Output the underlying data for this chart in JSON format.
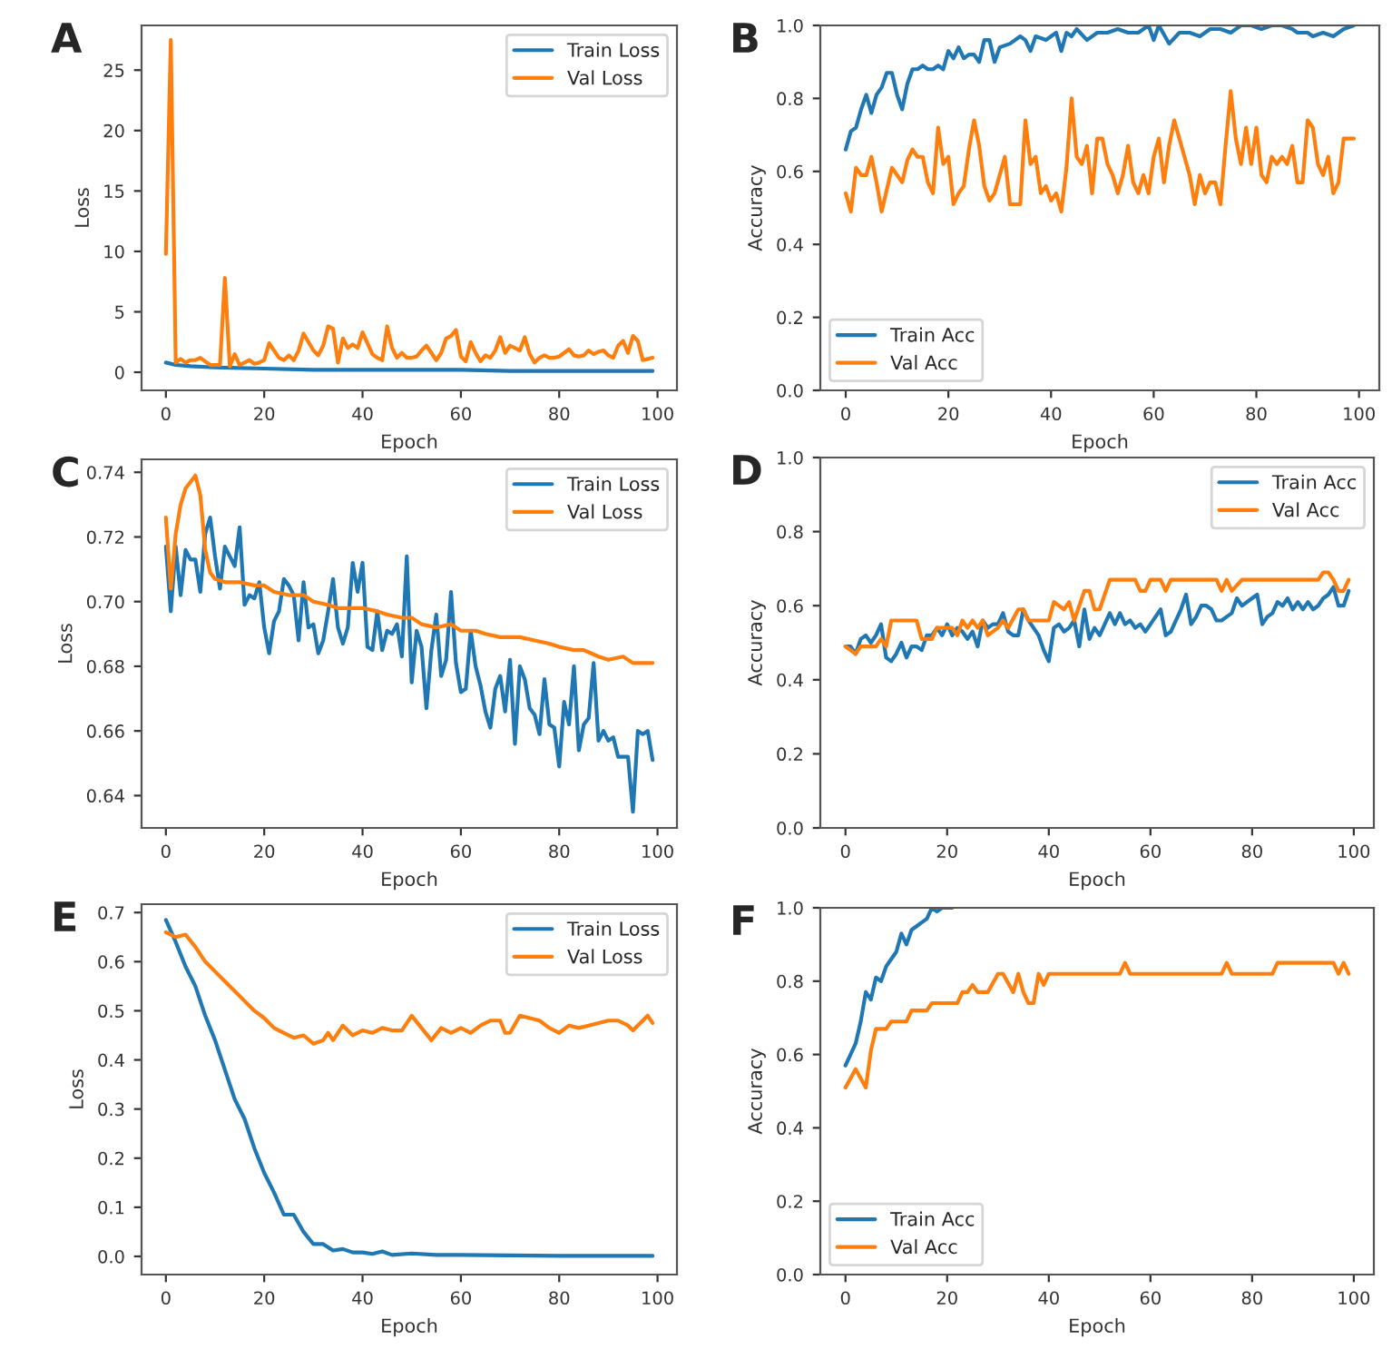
{
  "chart_data": [
    {
      "type": "line",
      "title": "A",
      "xlabel": "Epoch",
      "ylabel": "Loss",
      "xlim": [
        -4.95,
        103.95
      ],
      "xticks": [
        0,
        20,
        40,
        60,
        80,
        100
      ],
      "ylim": [
        -1.5,
        28.7
      ],
      "yticks": [
        0,
        5,
        10,
        15,
        20,
        25
      ],
      "legend": "top right",
      "grid": false,
      "series": [
        {
          "name": "Train Loss",
          "color": "#1f77b4",
          "x": [
            0,
            2,
            5,
            10,
            20,
            30,
            40,
            50,
            60,
            70,
            80,
            90,
            99
          ],
          "values": [
            0.8,
            0.6,
            0.5,
            0.4,
            0.3,
            0.2,
            0.2,
            0.2,
            0.2,
            0.1,
            0.1,
            0.1,
            0.1
          ]
        },
        {
          "name": "Val Loss",
          "color": "#ff7f0e",
          "x": [
            0,
            1,
            2,
            3,
            4,
            5,
            6,
            7,
            8,
            9,
            10,
            11,
            12,
            13,
            14,
            15,
            16,
            17,
            18,
            19,
            20,
            21,
            22,
            23,
            24,
            25,
            26,
            27,
            28,
            29,
            30,
            31,
            32,
            33,
            34,
            35,
            36,
            37,
            38,
            39,
            40,
            41,
            42,
            43,
            44,
            45,
            46,
            47,
            48,
            49,
            50,
            51,
            52,
            53,
            54,
            55,
            56,
            57,
            58,
            59,
            60,
            61,
            62,
            63,
            64,
            65,
            66,
            67,
            68,
            69,
            70,
            71,
            72,
            73,
            74,
            75,
            76,
            77,
            78,
            79,
            80,
            81,
            82,
            83,
            84,
            85,
            86,
            87,
            88,
            89,
            90,
            91,
            92,
            93,
            94,
            95,
            96,
            97,
            98,
            99
          ],
          "values": [
            9.8,
            27.5,
            0.8,
            1.1,
            0.8,
            1.0,
            1.0,
            1.2,
            0.9,
            0.6,
            0.6,
            0.6,
            7.8,
            0.5,
            1.5,
            0.6,
            0.8,
            1.0,
            0.7,
            0.8,
            1.0,
            2.4,
            1.8,
            1.2,
            1.0,
            1.4,
            1.0,
            1.8,
            3.2,
            2.5,
            1.8,
            1.4,
            2.2,
            3.8,
            3.6,
            0.8,
            2.8,
            2.0,
            2.3,
            2.0,
            3.3,
            2.4,
            1.5,
            1.2,
            1.0,
            3.8,
            2.0,
            1.2,
            1.6,
            1.2,
            1.2,
            1.3,
            1.8,
            2.2,
            1.6,
            1.0,
            1.6,
            2.8,
            3.0,
            3.5,
            1.3,
            0.9,
            2.5,
            1.6,
            0.9,
            1.4,
            1.2,
            1.8,
            2.9,
            1.6,
            2.2,
            2.0,
            1.8,
            2.9,
            1.5,
            0.8,
            1.2,
            1.4,
            1.2,
            1.2,
            1.3,
            1.6,
            1.9,
            1.4,
            1.3,
            1.4,
            1.8,
            1.5,
            1.7,
            1.8,
            1.4,
            1.2,
            2.2,
            2.6,
            1.6,
            3.0,
            2.6,
            1.0,
            1.1,
            1.2
          ]
        }
      ]
    },
    {
      "type": "line",
      "title": "B",
      "xlabel": "Epoch",
      "ylabel": "Accuracy",
      "xlim": [
        -4.95,
        103.95
      ],
      "xticks": [
        0,
        20,
        40,
        60,
        80,
        100
      ],
      "ylim": [
        0,
        1
      ],
      "yticks": [
        {
          "value": 0,
          "label": "0.0"
        },
        0.2,
        0.4,
        0.6,
        0.8,
        {
          "value": 1,
          "label": "1.0"
        }
      ],
      "legend": "bottom left",
      "grid": false,
      "series": [
        {
          "name": "Train Acc",
          "color": "#1f77b4",
          "x": [
            0,
            1,
            2,
            3,
            4,
            5,
            6,
            7,
            8,
            9,
            10,
            11,
            12,
            13,
            14,
            15,
            16,
            17,
            18,
            19,
            20,
            21,
            22,
            23,
            24,
            25,
            26,
            27,
            28,
            29,
            30,
            32,
            34,
            35,
            36,
            37,
            39,
            40,
            41,
            42,
            43,
            44,
            45,
            47,
            49,
            51,
            53,
            55,
            57,
            59,
            60,
            61,
            63,
            65,
            67,
            69,
            71,
            73,
            75,
            77,
            79,
            81,
            83,
            85,
            87,
            88,
            90,
            91,
            93,
            95,
            97,
            99
          ],
          "values": [
            0.66,
            0.71,
            0.72,
            0.77,
            0.81,
            0.76,
            0.81,
            0.83,
            0.87,
            0.87,
            0.81,
            0.77,
            0.84,
            0.88,
            0.88,
            0.89,
            0.88,
            0.88,
            0.89,
            0.88,
            0.93,
            0.91,
            0.94,
            0.91,
            0.92,
            0.92,
            0.9,
            0.96,
            0.96,
            0.9,
            0.94,
            0.95,
            0.97,
            0.96,
            0.93,
            0.97,
            0.96,
            0.97,
            0.98,
            0.93,
            0.98,
            0.97,
            0.99,
            0.96,
            0.98,
            0.98,
            0.99,
            0.98,
            0.98,
            1.0,
            0.96,
            1.0,
            0.95,
            0.98,
            0.98,
            0.97,
            0.99,
            0.99,
            0.98,
            1.0,
            1.0,
            0.99,
            1.0,
            1.0,
            0.99,
            0.98,
            0.98,
            0.97,
            0.98,
            0.97,
            0.99,
            1.0
          ]
        },
        {
          "name": "Val Acc",
          "color": "#ff7f0e",
          "x": [
            0,
            1,
            2,
            3,
            4,
            5,
            6,
            7,
            8,
            9,
            10,
            11,
            12,
            13,
            14,
            15,
            16,
            17,
            18,
            19,
            20,
            21,
            22,
            23,
            24,
            25,
            26,
            27,
            28,
            29,
            30,
            31,
            32,
            33,
            34,
            35,
            36,
            37,
            38,
            39,
            40,
            41,
            42,
            43,
            44,
            45,
            46,
            47,
            48,
            49,
            50,
            51,
            52,
            53,
            54,
            55,
            56,
            57,
            58,
            59,
            60,
            61,
            62,
            63,
            64,
            65,
            66,
            67,
            68,
            69,
            70,
            71,
            72,
            73,
            74,
            75,
            76,
            77,
            78,
            79,
            80,
            81,
            82,
            83,
            84,
            85,
            86,
            87,
            88,
            89,
            90,
            91,
            92,
            93,
            94,
            95,
            96,
            97,
            98,
            99
          ],
          "values": [
            0.54,
            0.49,
            0.61,
            0.59,
            0.59,
            0.64,
            0.57,
            0.49,
            0.55,
            0.61,
            0.59,
            0.57,
            0.63,
            0.66,
            0.64,
            0.64,
            0.57,
            0.54,
            0.72,
            0.62,
            0.64,
            0.51,
            0.54,
            0.56,
            0.66,
            0.74,
            0.67,
            0.56,
            0.52,
            0.54,
            0.59,
            0.64,
            0.51,
            0.51,
            0.51,
            0.74,
            0.62,
            0.64,
            0.54,
            0.56,
            0.52,
            0.54,
            0.49,
            0.61,
            0.8,
            0.64,
            0.62,
            0.67,
            0.54,
            0.69,
            0.69,
            0.62,
            0.59,
            0.54,
            0.59,
            0.67,
            0.57,
            0.54,
            0.59,
            0.54,
            0.64,
            0.69,
            0.57,
            0.67,
            0.74,
            0.69,
            0.64,
            0.59,
            0.51,
            0.59,
            0.54,
            0.57,
            0.57,
            0.51,
            0.67,
            0.82,
            0.69,
            0.62,
            0.72,
            0.62,
            0.72,
            0.59,
            0.57,
            0.64,
            0.62,
            0.64,
            0.62,
            0.67,
            0.57,
            0.57,
            0.74,
            0.72,
            0.62,
            0.59,
            0.64,
            0.54,
            0.57,
            0.69,
            0.69,
            0.69
          ]
        }
      ]
    },
    {
      "type": "line",
      "title": "C",
      "xlabel": "Epoch",
      "ylabel": "Loss",
      "xlim": [
        -4.95,
        103.95
      ],
      "xticks": [
        0,
        20,
        40,
        60,
        80,
        100
      ],
      "ylim": [
        0.63,
        0.744
      ],
      "yticks": [
        0.64,
        0.66,
        0.68,
        {
          "value": 0.7,
          "label": "0.70"
        },
        0.72,
        0.74
      ],
      "legend": "top right",
      "grid": false,
      "series": [
        {
          "name": "Train Loss",
          "color": "#1f77b4",
          "x": [
            0,
            1,
            2,
            3,
            4,
            5,
            6,
            7,
            8,
            9,
            10,
            11,
            12,
            13,
            14,
            15,
            16,
            17,
            18,
            19,
            20,
            21,
            22,
            23,
            24,
            25,
            26,
            27,
            28,
            29,
            30,
            31,
            32,
            33,
            34,
            35,
            36,
            37,
            38,
            39,
            40,
            41,
            42,
            43,
            44,
            45,
            46,
            47,
            48,
            49,
            50,
            51,
            52,
            53,
            54,
            55,
            56,
            57,
            58,
            59,
            60,
            61,
            62,
            63,
            64,
            65,
            66,
            67,
            68,
            69,
            70,
            71,
            72,
            73,
            74,
            75,
            76,
            77,
            78,
            79,
            80,
            81,
            82,
            83,
            84,
            85,
            86,
            87,
            88,
            89,
            90,
            91,
            92,
            93,
            94,
            95,
            96,
            97,
            98,
            99
          ],
          "values": [
            0.717,
            0.697,
            0.717,
            0.702,
            0.716,
            0.713,
            0.713,
            0.703,
            0.721,
            0.726,
            0.714,
            0.704,
            0.717,
            0.714,
            0.711,
            0.723,
            0.699,
            0.702,
            0.701,
            0.706,
            0.692,
            0.684,
            0.694,
            0.697,
            0.707,
            0.705,
            0.702,
            0.688,
            0.706,
            0.692,
            0.693,
            0.684,
            0.688,
            0.697,
            0.707,
            0.692,
            0.687,
            0.692,
            0.712,
            0.703,
            0.712,
            0.686,
            0.685,
            0.697,
            0.685,
            0.691,
            0.69,
            0.693,
            0.683,
            0.714,
            0.675,
            0.691,
            0.686,
            0.667,
            0.685,
            0.696,
            0.677,
            0.682,
            0.703,
            0.681,
            0.672,
            0.673,
            0.691,
            0.68,
            0.674,
            0.666,
            0.661,
            0.673,
            0.677,
            0.666,
            0.682,
            0.656,
            0.68,
            0.676,
            0.667,
            0.665,
            0.659,
            0.676,
            0.662,
            0.661,
            0.649,
            0.669,
            0.662,
            0.68,
            0.654,
            0.662,
            0.664,
            0.681,
            0.657,
            0.66,
            0.657,
            0.658,
            0.652,
            0.652,
            0.652,
            0.635,
            0.66,
            0.659,
            0.66,
            0.651
          ]
        },
        {
          "name": "Val Loss",
          "color": "#ff7f0e",
          "x": [
            0,
            1,
            2,
            3,
            4,
            5,
            6,
            7,
            8,
            9,
            10,
            12,
            15,
            18,
            20,
            22,
            25,
            28,
            30,
            33,
            35,
            38,
            40,
            43,
            45,
            48,
            50,
            52,
            55,
            58,
            60,
            63,
            65,
            68,
            70,
            72,
            75,
            78,
            80,
            83,
            85,
            88,
            90,
            93,
            95,
            97,
            99
          ],
          "values": [
            0.726,
            0.704,
            0.721,
            0.73,
            0.735,
            0.737,
            0.739,
            0.733,
            0.716,
            0.709,
            0.707,
            0.706,
            0.706,
            0.705,
            0.705,
            0.703,
            0.702,
            0.702,
            0.7,
            0.699,
            0.698,
            0.698,
            0.698,
            0.697,
            0.696,
            0.695,
            0.695,
            0.693,
            0.692,
            0.693,
            0.691,
            0.691,
            0.69,
            0.689,
            0.689,
            0.689,
            0.688,
            0.687,
            0.686,
            0.685,
            0.685,
            0.683,
            0.682,
            0.683,
            0.681,
            0.681,
            0.681
          ]
        }
      ]
    },
    {
      "type": "line",
      "title": "D",
      "xlabel": "Epoch",
      "ylabel": "Accuracy",
      "xlim": [
        -4.95,
        103.95
      ],
      "xticks": [
        0,
        20,
        40,
        60,
        80,
        100
      ],
      "ylim": [
        0,
        1
      ],
      "yticks": [
        {
          "value": 0,
          "label": "0.0"
        },
        0.2,
        0.4,
        0.6,
        0.8,
        {
          "value": 1,
          "label": "1.0"
        }
      ],
      "legend": "top right",
      "grid": false,
      "series": [
        {
          "name": "Train Acc",
          "color": "#1f77b4",
          "x": [
            0,
            1,
            2,
            3,
            4,
            5,
            6,
            7,
            8,
            9,
            10,
            11,
            12,
            13,
            14,
            15,
            16,
            17,
            18,
            19,
            20,
            21,
            22,
            23,
            24,
            25,
            26,
            27,
            28,
            29,
            30,
            31,
            32,
            33,
            34,
            35,
            36,
            37,
            38,
            39,
            40,
            41,
            42,
            43,
            44,
            45,
            46,
            47,
            48,
            49,
            50,
            51,
            52,
            53,
            54,
            55,
            56,
            57,
            58,
            59,
            60,
            61,
            62,
            63,
            64,
            65,
            66,
            67,
            68,
            69,
            70,
            71,
            72,
            73,
            74,
            75,
            76,
            77,
            78,
            79,
            80,
            81,
            82,
            83,
            84,
            85,
            86,
            87,
            88,
            89,
            90,
            91,
            92,
            93,
            94,
            95,
            96,
            97,
            98,
            99
          ],
          "values": [
            0.49,
            0.49,
            0.47,
            0.51,
            0.52,
            0.5,
            0.52,
            0.55,
            0.46,
            0.45,
            0.47,
            0.5,
            0.46,
            0.49,
            0.49,
            0.48,
            0.52,
            0.52,
            0.54,
            0.52,
            0.55,
            0.52,
            0.54,
            0.53,
            0.51,
            0.53,
            0.49,
            0.56,
            0.54,
            0.55,
            0.55,
            0.58,
            0.53,
            0.52,
            0.52,
            0.59,
            0.56,
            0.54,
            0.52,
            0.48,
            0.45,
            0.54,
            0.55,
            0.53,
            0.54,
            0.56,
            0.49,
            0.59,
            0.51,
            0.54,
            0.52,
            0.55,
            0.58,
            0.55,
            0.58,
            0.55,
            0.56,
            0.54,
            0.55,
            0.53,
            0.55,
            0.57,
            0.59,
            0.52,
            0.53,
            0.56,
            0.59,
            0.63,
            0.55,
            0.57,
            0.6,
            0.6,
            0.59,
            0.56,
            0.56,
            0.57,
            0.58,
            0.62,
            0.6,
            0.61,
            0.62,
            0.63,
            0.55,
            0.57,
            0.58,
            0.61,
            0.6,
            0.62,
            0.59,
            0.61,
            0.59,
            0.61,
            0.59,
            0.6,
            0.62,
            0.63,
            0.65,
            0.6,
            0.6,
            0.64
          ]
        },
        {
          "name": "Val Acc",
          "color": "#ff7f0e",
          "x": [
            0,
            2,
            3,
            6,
            7,
            8,
            9,
            14,
            15,
            17,
            18,
            21,
            22,
            23,
            24,
            25,
            26,
            27,
            28,
            30,
            31,
            32,
            34,
            35,
            36,
            40,
            41,
            43,
            44,
            45,
            47,
            48,
            49,
            50,
            52,
            57,
            58,
            59,
            60,
            62,
            63,
            64,
            73,
            74,
            75,
            76,
            78,
            93,
            94,
            95,
            96,
            97,
            98,
            99
          ],
          "values": [
            0.49,
            0.47,
            0.49,
            0.49,
            0.51,
            0.49,
            0.56,
            0.56,
            0.51,
            0.51,
            0.54,
            0.54,
            0.52,
            0.56,
            0.54,
            0.56,
            0.54,
            0.56,
            0.52,
            0.54,
            0.56,
            0.54,
            0.59,
            0.59,
            0.56,
            0.56,
            0.61,
            0.59,
            0.61,
            0.56,
            0.64,
            0.64,
            0.59,
            0.59,
            0.67,
            0.67,
            0.64,
            0.64,
            0.67,
            0.67,
            0.64,
            0.67,
            0.67,
            0.64,
            0.67,
            0.64,
            0.67,
            0.67,
            0.69,
            0.69,
            0.67,
            0.64,
            0.64,
            0.67
          ]
        }
      ]
    },
    {
      "type": "line",
      "title": "E",
      "xlabel": "Epoch",
      "ylabel": "Loss",
      "xlim": [
        -4.95,
        103.95
      ],
      "xticks": [
        0,
        20,
        40,
        60,
        80,
        100
      ],
      "ylim": [
        -0.037,
        0.717
      ],
      "yticks": [
        {
          "value": 0,
          "label": "0.0"
        },
        0.1,
        0.2,
        0.3,
        0.4,
        0.5,
        0.6,
        0.7
      ],
      "legend": "top right",
      "grid": false,
      "series": [
        {
          "name": "Train Loss",
          "color": "#1f77b4",
          "x": [
            0,
            2,
            4,
            6,
            8,
            10,
            12,
            14,
            16,
            18,
            20,
            22,
            24,
            26,
            28,
            30,
            32,
            34,
            36,
            38,
            40,
            42,
            44,
            46,
            50,
            55,
            60,
            70,
            80,
            90,
            99
          ],
          "values": [
            0.685,
            0.64,
            0.59,
            0.55,
            0.49,
            0.44,
            0.38,
            0.32,
            0.28,
            0.22,
            0.17,
            0.13,
            0.085,
            0.085,
            0.05,
            0.025,
            0.025,
            0.012,
            0.015,
            0.008,
            0.008,
            0.005,
            0.01,
            0.003,
            0.006,
            0.003,
            0.003,
            0.002,
            0.001,
            0.001,
            0.001
          ]
        },
        {
          "name": "Val Loss",
          "color": "#ff7f0e",
          "x": [
            0,
            2,
            4,
            6,
            8,
            10,
            12,
            14,
            16,
            18,
            20,
            22,
            24,
            26,
            28,
            30,
            32,
            33,
            34,
            36,
            38,
            40,
            42,
            44,
            46,
            48,
            50,
            52,
            54,
            56,
            58,
            60,
            62,
            64,
            66,
            68,
            69,
            70,
            72,
            74,
            76,
            78,
            80,
            82,
            84,
            86,
            88,
            90,
            92,
            94,
            95,
            97,
            98,
            99
          ],
          "values": [
            0.66,
            0.65,
            0.655,
            0.63,
            0.6,
            0.58,
            0.56,
            0.54,
            0.52,
            0.5,
            0.485,
            0.465,
            0.455,
            0.445,
            0.45,
            0.433,
            0.44,
            0.455,
            0.44,
            0.47,
            0.45,
            0.46,
            0.455,
            0.465,
            0.46,
            0.46,
            0.49,
            0.465,
            0.44,
            0.465,
            0.455,
            0.465,
            0.455,
            0.47,
            0.48,
            0.48,
            0.455,
            0.455,
            0.49,
            0.485,
            0.48,
            0.465,
            0.455,
            0.47,
            0.465,
            0.47,
            0.475,
            0.48,
            0.48,
            0.47,
            0.46,
            0.48,
            0.49,
            0.475
          ]
        }
      ]
    },
    {
      "type": "line",
      "title": "F",
      "xlabel": "Epoch",
      "ylabel": "Accuracy",
      "xlim": [
        -4.95,
        103.95
      ],
      "xticks": [
        0,
        20,
        40,
        60,
        80,
        100
      ],
      "ylim": [
        0,
        1
      ],
      "yticks": [
        {
          "value": 0,
          "label": "0.0"
        },
        0.2,
        0.4,
        0.6,
        0.8,
        {
          "value": 1,
          "label": "1.0"
        }
      ],
      "legend": "bottom left",
      "grid": false,
      "series": [
        {
          "name": "Train Acc",
          "color": "#1f77b4",
          "x": [
            0,
            1,
            2,
            3,
            4,
            5,
            6,
            7,
            8,
            9,
            10,
            11,
            12,
            13,
            14,
            15,
            16,
            17,
            18,
            19,
            20,
            21
          ],
          "values": [
            0.57,
            0.6,
            0.63,
            0.69,
            0.77,
            0.75,
            0.81,
            0.8,
            0.84,
            0.86,
            0.88,
            0.93,
            0.9,
            0.94,
            0.95,
            0.96,
            0.97,
            1.0,
            0.99,
            1.0,
            1.0,
            1.0
          ]
        },
        {
          "name": "Val Acc",
          "color": "#ff7f0e",
          "x": [
            0,
            2,
            4,
            5,
            6,
            8,
            9,
            12,
            13,
            16,
            17,
            22,
            23,
            24,
            25,
            26,
            28,
            30,
            31,
            33,
            34,
            35,
            36,
            37,
            38,
            39,
            40,
            54,
            55,
            56,
            74,
            75,
            76,
            84,
            85,
            96,
            97,
            98,
            99
          ],
          "values": [
            0.51,
            0.56,
            0.51,
            0.61,
            0.67,
            0.67,
            0.69,
            0.69,
            0.72,
            0.72,
            0.74,
            0.74,
            0.77,
            0.77,
            0.79,
            0.77,
            0.77,
            0.82,
            0.82,
            0.77,
            0.82,
            0.77,
            0.74,
            0.74,
            0.82,
            0.79,
            0.82,
            0.82,
            0.85,
            0.82,
            0.82,
            0.85,
            0.82,
            0.82,
            0.85,
            0.85,
            0.82,
            0.85,
            0.82
          ]
        }
      ]
    }
  ]
}
